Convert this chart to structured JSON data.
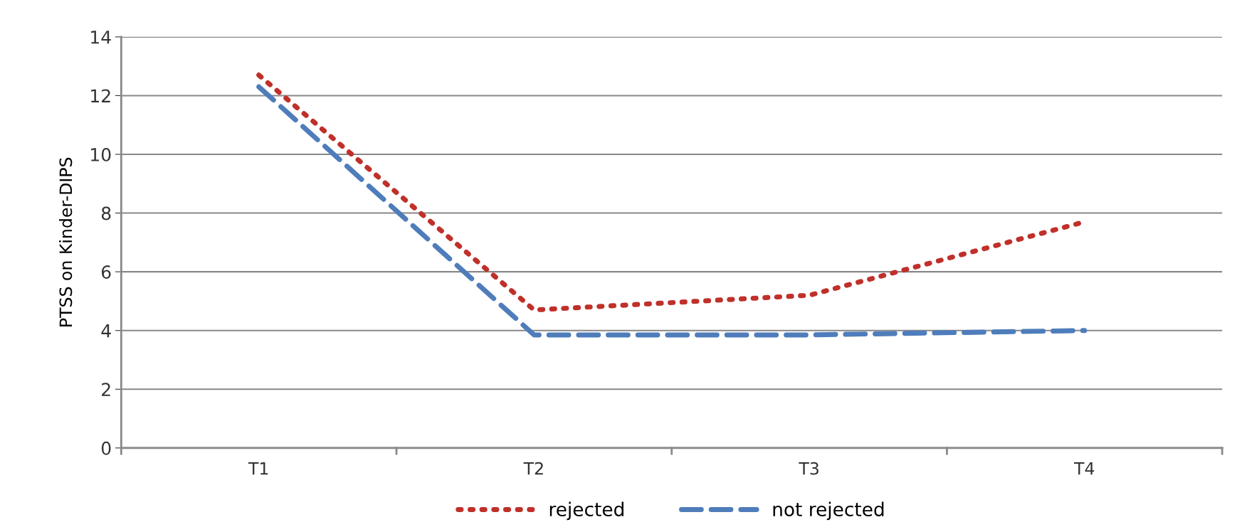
{
  "chart_data": {
    "type": "line",
    "ylabel": "PTSS on Kinder-DIPS",
    "categories": [
      "T1",
      "T2",
      "T3",
      "T4"
    ],
    "series": [
      {
        "name": "rejected",
        "color": "#c0302a",
        "values": [
          12.7,
          4.7,
          5.2,
          7.7
        ],
        "line_style": "dotted"
      },
      {
        "name": "not rejected",
        "color": "#4f7dbb",
        "values": [
          12.3,
          3.85,
          3.85,
          4.0
        ],
        "line_style": "dashed"
      }
    ],
    "ylim": [
      0,
      14
    ],
    "yticks": [
      0,
      2,
      4,
      6,
      8,
      10,
      12,
      14
    ],
    "grid": "y",
    "legend": "bottom",
    "marker": "none"
  }
}
